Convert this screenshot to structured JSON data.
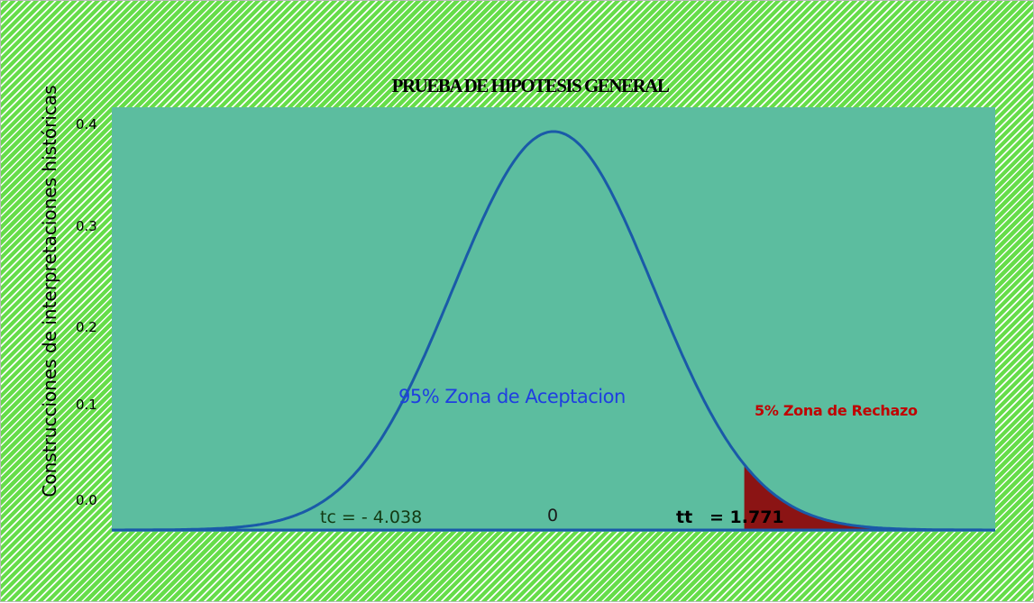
{
  "chart_data": {
    "type": "area",
    "title": "PRUEBA DE HIPOTESIS GENERAL",
    "xlabel": "",
    "ylabel": "Construcciones  de  interpretaciones  históricas",
    "y_ticks": [
      "0.0",
      "0.1",
      "0.2",
      "0.3",
      "0.4"
    ],
    "ylim": [
      0,
      0.4
    ],
    "xlim": [
      -4.4,
      4.4
    ],
    "grid": false,
    "series": [
      {
        "distribution": "normal",
        "mean": 0,
        "std": 1,
        "x": [
          -4.4,
          -4.0,
          -3.5,
          -3.0,
          -2.5,
          -2.0,
          -1.5,
          -1.0,
          -0.5,
          0,
          0.5,
          1.0,
          1.5,
          2.0,
          2.5,
          3.0,
          3.5,
          4.0,
          4.4
        ],
        "values": [
          0.0,
          0.0001,
          0.0009,
          0.0044,
          0.0175,
          0.054,
          0.1295,
          0.242,
          0.3521,
          0.3989,
          0.3521,
          0.242,
          0.1295,
          0.054,
          0.0175,
          0.0044,
          0.0009,
          0.0001,
          0.0
        ]
      }
    ],
    "rejection_region": {
      "from_x": 1.9,
      "to_x": 3.8
    },
    "annotations": {
      "acceptance": "95%  Zona de Aceptacion",
      "rejection": "5% Zona de Rechazo",
      "tc": "tc  =  - 4.038",
      "center": "0",
      "tt_label": "tt",
      "tt_value": "= 1.771"
    },
    "colors": {
      "plot_background": "#5cbd9f",
      "curve": "#1a5aa8",
      "rejection_fill": "#8b1414",
      "acceptance_text": "#1f3fe0",
      "rejection_text": "#c00000",
      "outer_background": "#66dd4a"
    }
  }
}
